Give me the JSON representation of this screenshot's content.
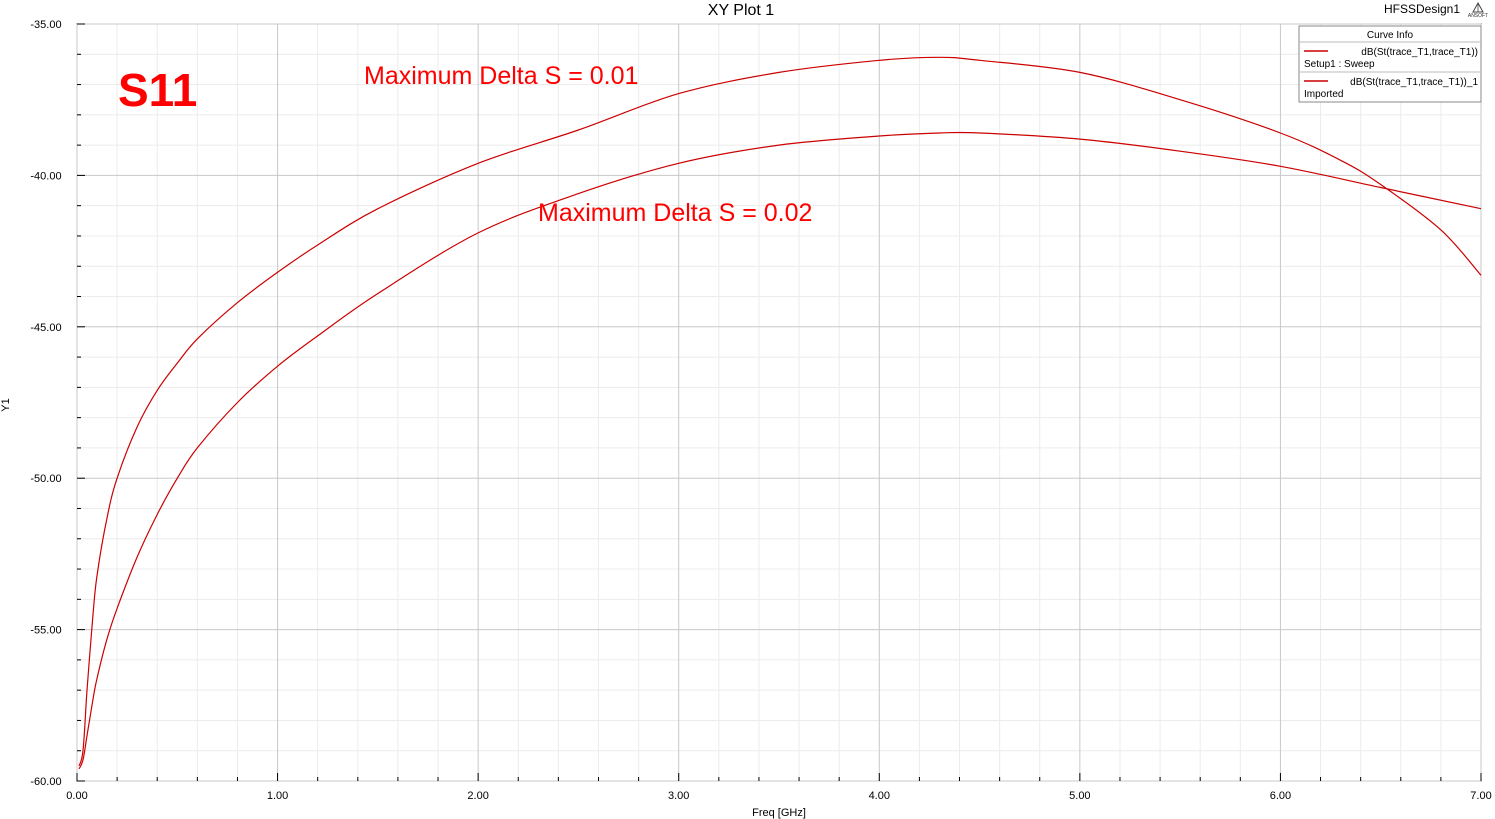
{
  "chart_data": {
    "type": "line",
    "title": "XY Plot 1",
    "design_name": "HFSSDesign1",
    "logo_text": "ANSOFT",
    "xlabel": "Freq [GHz]",
    "ylabel": "Y1",
    "xlim": [
      0,
      7
    ],
    "ylim": [
      -60,
      -35
    ],
    "x_ticks": [
      0,
      1,
      2,
      3,
      4,
      5,
      6,
      7
    ],
    "x_tick_labels": [
      "0.00",
      "1.00",
      "2.00",
      "3.00",
      "4.00",
      "5.00",
      "6.00",
      "7.00"
    ],
    "y_ticks": [
      -60,
      -55,
      -50,
      -45,
      -40,
      -35
    ],
    "y_tick_labels": [
      "-60.00",
      "-55.00",
      "-50.00",
      "-45.00",
      "-40.00",
      "-35.00"
    ],
    "grid": true,
    "legend": {
      "title": "Curve Info",
      "placement": "top-right",
      "entries": [
        {
          "label": "dB(St(trace_T1,trace_T1))",
          "sublabel": "Setup1 : Sweep"
        },
        {
          "label": "dB(St(trace_T1,trace_T1))_1",
          "sublabel": "Imported"
        }
      ]
    },
    "series": [
      {
        "color": "#cc0000",
        "x": [
          0.01,
          0.03,
          0.05,
          0.08,
          0.1,
          0.15,
          0.2,
          0.3,
          0.4,
          0.5,
          0.6,
          0.8,
          1.0,
          1.2,
          1.5,
          2.0,
          2.5,
          3.0,
          3.5,
          4.0,
          4.3,
          4.5,
          5.0,
          5.5,
          6.0,
          6.3,
          6.5,
          6.8,
          7.0
        ],
        "y": [
          -59.5,
          -59.0,
          -57.0,
          -54.5,
          -53.2,
          -51.3,
          -50.0,
          -48.3,
          -47.1,
          -46.2,
          -45.4,
          -44.2,
          -43.2,
          -42.3,
          -41.1,
          -39.6,
          -38.5,
          -37.3,
          -36.6,
          -36.2,
          -36.1,
          -36.2,
          -36.6,
          -37.5,
          -38.6,
          -39.5,
          -40.3,
          -41.8,
          -43.3
        ]
      },
      {
        "color": "#cc0000",
        "x": [
          0.01,
          0.03,
          0.05,
          0.08,
          0.1,
          0.15,
          0.2,
          0.3,
          0.4,
          0.5,
          0.6,
          0.8,
          1.0,
          1.2,
          1.5,
          2.0,
          2.5,
          3.0,
          3.5,
          4.0,
          4.3,
          4.5,
          5.0,
          5.5,
          6.0,
          6.5,
          7.0
        ],
        "y": [
          -59.6,
          -59.3,
          -58.5,
          -57.3,
          -56.6,
          -55.3,
          -54.3,
          -52.6,
          -51.2,
          -50.0,
          -49.0,
          -47.5,
          -46.3,
          -45.3,
          -43.9,
          -41.9,
          -40.6,
          -39.6,
          -39.0,
          -38.7,
          -38.6,
          -38.6,
          -38.8,
          -39.2,
          -39.7,
          -40.4,
          -41.1
        ]
      }
    ],
    "annotations": [
      {
        "text": "S11",
        "style": "big"
      },
      {
        "text": "Maximum Delta S = 0.01",
        "style": "normal"
      },
      {
        "text": "Maximum Delta S = 0.02",
        "style": "normal"
      }
    ]
  }
}
